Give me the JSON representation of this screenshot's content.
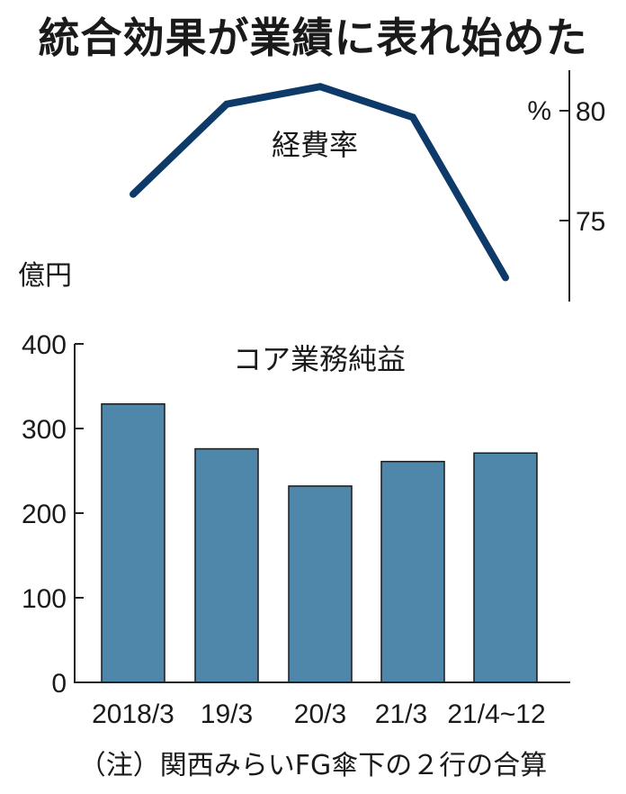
{
  "title": "統合効果が業績に表れ始めた",
  "chart_data": [
    {
      "type": "line",
      "title": "経費率",
      "unit": "%",
      "categories": [
        "2018/3",
        "19/3",
        "20/3",
        "21/3",
        "21/4~12"
      ],
      "values": [
        76.2,
        80.3,
        81.1,
        79.7,
        72.4
      ],
      "ylim": [
        71.5,
        82.3
      ],
      "yticks": [
        75,
        80
      ],
      "axis_position": "right",
      "color": "#0d3a68",
      "grid": false
    },
    {
      "type": "bar",
      "title": "コア業務純益",
      "unit": "億円",
      "categories": [
        "2018/3",
        "19/3",
        "20/3",
        "21/3",
        "21/4~12"
      ],
      "values": [
        329,
        276,
        232,
        261,
        271
      ],
      "ylim": [
        0,
        400
      ],
      "yticks": [
        0,
        100,
        200,
        300,
        400
      ],
      "axis_position": "left",
      "color": "#4f87ab",
      "grid": false
    }
  ],
  "line_chart": {
    "label": "経費率",
    "unit_label": "%",
    "ticks": [
      {
        "value": 80,
        "label": "80"
      },
      {
        "value": 75,
        "label": "75"
      }
    ]
  },
  "bar_chart": {
    "label": "コア業務純益",
    "unit_label": "億円",
    "ticks": [
      {
        "value": 400,
        "label": "400"
      },
      {
        "value": 300,
        "label": "300"
      },
      {
        "value": 200,
        "label": "200"
      },
      {
        "value": 100,
        "label": "100"
      },
      {
        "value": 0,
        "label": "0"
      }
    ],
    "x_labels": [
      "2018/3",
      "19/3",
      "20/3",
      "21/3",
      "21/4~12"
    ]
  },
  "note": "（注）関西みらいFG傘下の２行の合算"
}
